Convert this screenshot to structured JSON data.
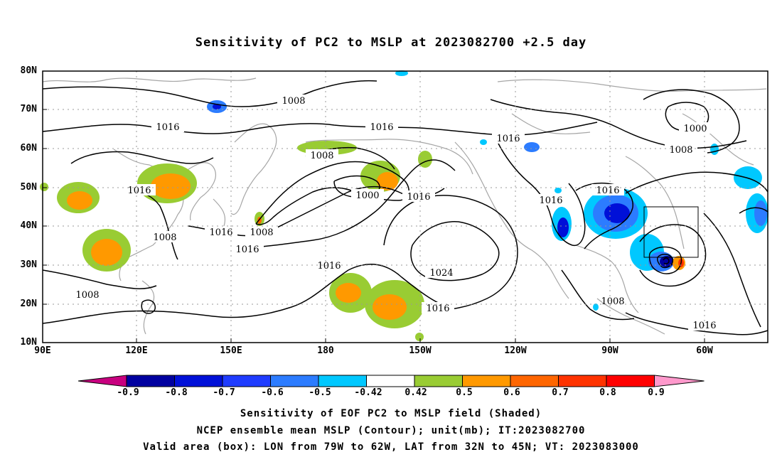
{
  "title": "Sensitivity of PC2 to MSLP at 2023082700 +2.5 day",
  "map": {
    "lat_labels": [
      "80N",
      "70N",
      "60N",
      "50N",
      "40N",
      "30N",
      "20N",
      "10N"
    ],
    "lon_labels": [
      "90E",
      "120E",
      "150E",
      "180",
      "150W",
      "120W",
      "90W",
      "60W"
    ],
    "contour_labels": [
      {
        "text": "1008"
      },
      {
        "text": "1016"
      },
      {
        "text": "1016"
      },
      {
        "text": "1016"
      },
      {
        "text": "1000"
      },
      {
        "text": "1008"
      },
      {
        "text": "1008"
      },
      {
        "text": "1016"
      },
      {
        "text": "1000"
      },
      {
        "text": "1016"
      },
      {
        "text": "1016"
      },
      {
        "text": "1016"
      },
      {
        "text": "1008"
      },
      {
        "text": "1016"
      },
      {
        "text": "1016"
      },
      {
        "text": "1016"
      },
      {
        "text": "1024"
      },
      {
        "text": "1008"
      },
      {
        "text": "1016"
      },
      {
        "text": "1008"
      },
      {
        "text": "1016"
      }
    ]
  },
  "colorbar": {
    "labels": [
      "-0.9",
      "-0.8",
      "-0.7",
      "-0.6",
      "-0.5",
      "-0.42",
      "0.42",
      "0.5",
      "0.6",
      "0.7",
      "0.8",
      "0.9"
    ],
    "colors": [
      "#c8007f",
      "#0000a0",
      "#0010d8",
      "#1f3cff",
      "#2c7cff",
      "#00c8ff",
      "#ffffff",
      "#99cc33",
      "#ff9900",
      "#ff6600",
      "#ff3300",
      "#ff0000",
      "#ff99cc"
    ]
  },
  "caption": {
    "line1": "Sensitivity of EOF PC2 to MSLP field (Shaded)",
    "line2": "NCEP ensemble mean MSLP (Contour); unit(mb); IT:2023082700",
    "line3": "Valid area (box): LON from 79W to 62W, LAT from 32N to 45N; VT: 2023083000"
  }
}
